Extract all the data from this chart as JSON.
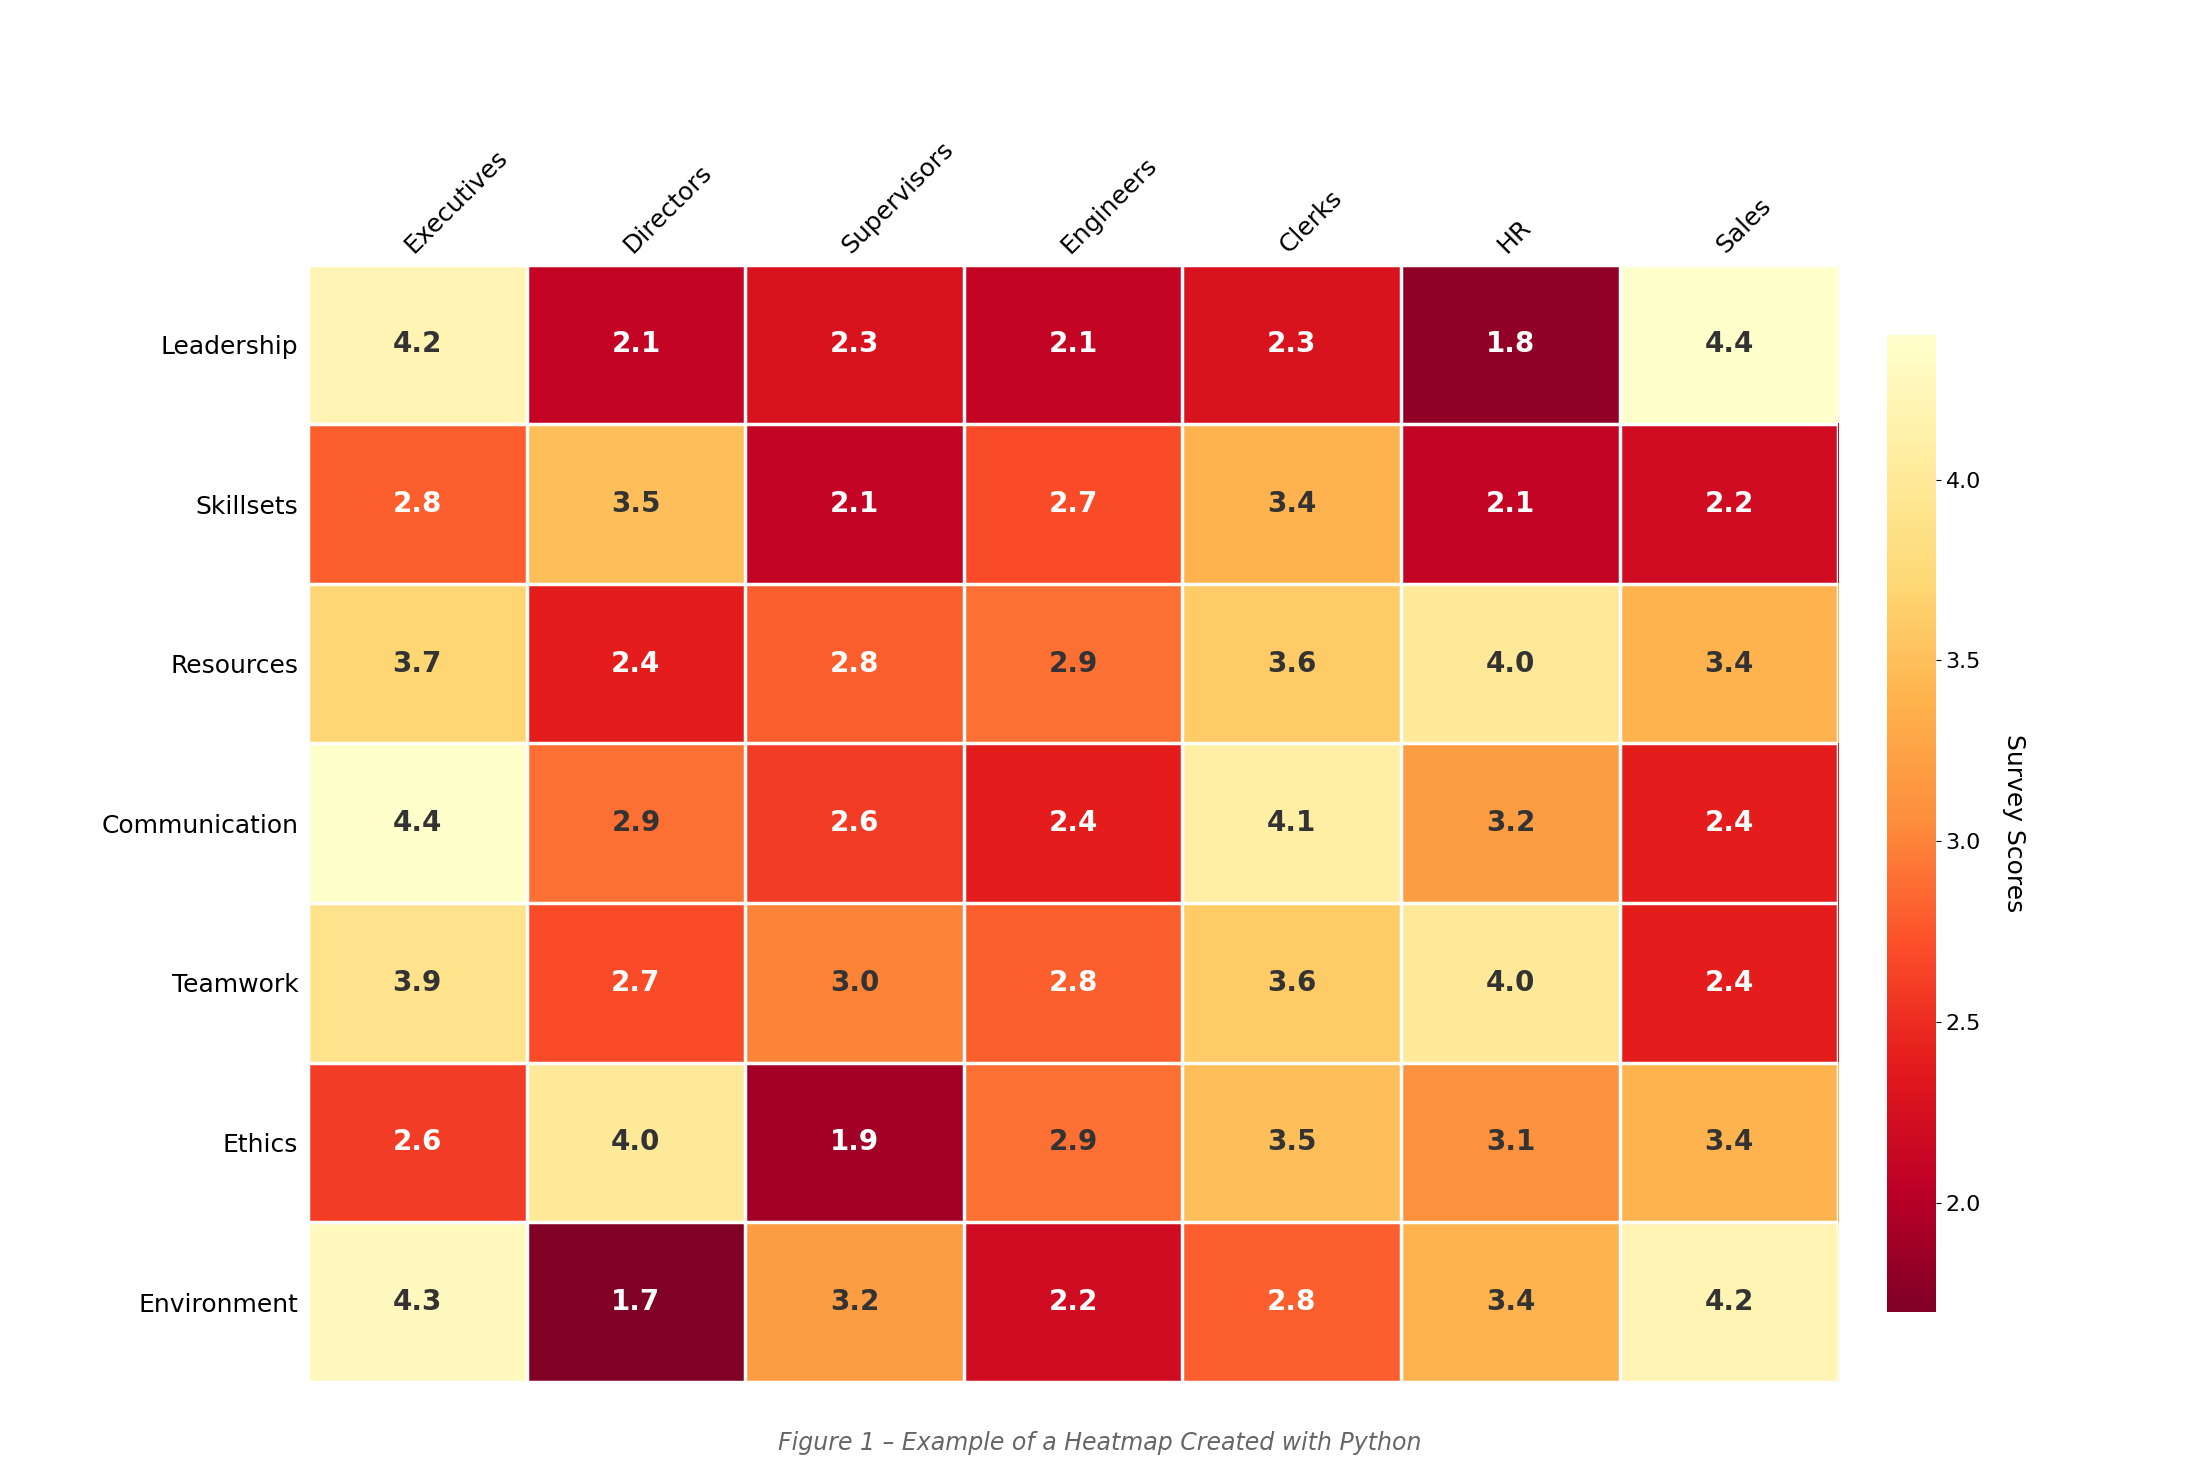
{
  "columns": [
    "Executives",
    "Directors",
    "Supervisors",
    "Engineers",
    "Clerks",
    "HR",
    "Sales"
  ],
  "rows": [
    "Leadership",
    "Skillsets",
    "Resources",
    "Communication",
    "Teamwork",
    "Ethics",
    "Environment"
  ],
  "values": [
    [
      4.2,
      2.1,
      2.3,
      2.1,
      2.3,
      1.8,
      4.4
    ],
    [
      2.8,
      3.5,
      2.1,
      2.7,
      3.4,
      2.1,
      2.2
    ],
    [
      3.7,
      2.4,
      2.8,
      2.9,
      3.6,
      4.0,
      3.4
    ],
    [
      4.4,
      2.9,
      2.6,
      2.4,
      4.1,
      3.2,
      2.4
    ],
    [
      3.9,
      2.7,
      3.0,
      2.8,
      3.6,
      4.0,
      2.4
    ],
    [
      2.6,
      4.0,
      1.9,
      2.9,
      3.5,
      3.1,
      3.4
    ],
    [
      4.3,
      1.7,
      3.2,
      2.2,
      2.8,
      3.4,
      4.2
    ]
  ],
  "vmin": 1.7,
  "vmax": 4.4,
  "colormap": "YlOrRd_r",
  "colorbar_label": "Survey Scores",
  "colorbar_ticks": [
    2.0,
    2.5,
    3.0,
    3.5,
    4.0
  ],
  "annotation_fontsize": 20,
  "row_label_fontsize": 18,
  "col_label_fontsize": 18,
  "colorbar_fontsize": 16,
  "colorbar_label_fontsize": 18,
  "title": "Figure 1 – Example of a Heatmap Created with Python",
  "title_fontsize": 17,
  "background_color": "#ffffff",
  "col_label_rotation": 45,
  "luminance_threshold": 0.55
}
